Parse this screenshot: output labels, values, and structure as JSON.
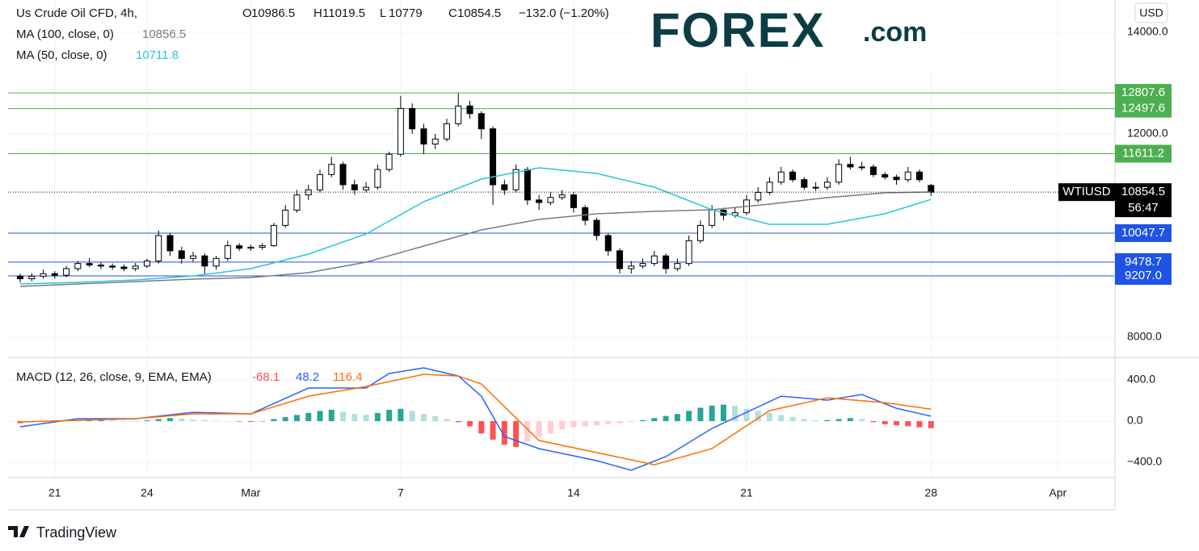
{
  "chart_data": {
    "type": "candlestick",
    "symbol_title": "Us Crude Oil CFD, 4h,",
    "ohlc_labels": [
      "O",
      "H",
      "L",
      "C"
    ],
    "change_text": "−132.0 (−1.20%)",
    "currency": "USD",
    "logo": "FOREX",
    "logo_suffix": ".com",
    "footer": "TradingView",
    "symbol": "WTIUSD",
    "countdown": "56:47",
    "categories": [
      null,
      null,
      null,
      "21",
      null,
      null,
      null,
      null,
      null,
      null,
      null,
      "24",
      null,
      null,
      null,
      null,
      null,
      null,
      null,
      null,
      "Mar",
      null,
      null,
      null,
      null,
      null,
      null,
      null,
      null,
      null,
      null,
      null,
      null,
      "7",
      null,
      null,
      null,
      null,
      null,
      null,
      null,
      null,
      null,
      null,
      null,
      null,
      null,
      null,
      "14",
      null,
      null,
      null,
      null,
      null,
      null,
      null,
      null,
      null,
      null,
      null,
      null,
      null,
      null,
      "21",
      null,
      null,
      null,
      null,
      null,
      null,
      null,
      null,
      null,
      null,
      null,
      null,
      null,
      null,
      null,
      "28",
      null,
      null,
      null,
      null,
      null,
      null,
      null,
      null,
      null,
      null,
      "Apr",
      null,
      null,
      null,
      null,
      null
    ],
    "ohlc": [
      [
        9200,
        9250,
        9080,
        9150
      ],
      [
        9150,
        9260,
        9100,
        9200
      ],
      [
        9200,
        9330,
        9150,
        9250
      ],
      [
        9250,
        9300,
        9150,
        9220
      ],
      [
        9220,
        9400,
        9180,
        9350
      ],
      [
        9350,
        9500,
        9300,
        9450
      ],
      [
        9450,
        9560,
        9380,
        9420
      ],
      [
        9420,
        9480,
        9340,
        9400
      ],
      [
        9400,
        9450,
        9330,
        9380
      ],
      [
        9380,
        9430,
        9300,
        9350
      ],
      [
        9350,
        9460,
        9300,
        9400
      ],
      [
        9400,
        9550,
        9360,
        9500
      ],
      [
        9500,
        10100,
        9450,
        10000
      ],
      [
        10000,
        10050,
        9600,
        9700
      ],
      [
        9700,
        9780,
        9450,
        9550
      ],
      [
        9550,
        9680,
        9480,
        9600
      ],
      [
        9600,
        9650,
        9250,
        9400
      ],
      [
        9400,
        9600,
        9330,
        9550
      ],
      [
        9550,
        9900,
        9500,
        9800
      ],
      [
        9800,
        9850,
        9700,
        9750
      ],
      [
        9750,
        9820,
        9700,
        9770
      ],
      [
        9770,
        9850,
        9720,
        9800
      ],
      [
        9800,
        10250,
        9780,
        10200
      ],
      [
        10200,
        10600,
        10150,
        10500
      ],
      [
        10500,
        10900,
        10450,
        10800
      ],
      [
        10800,
        11000,
        10700,
        10900
      ],
      [
        10900,
        11300,
        10850,
        11200
      ],
      [
        11200,
        11550,
        11150,
        11400
      ],
      [
        11400,
        11450,
        10900,
        11000
      ],
      [
        11000,
        11100,
        10800,
        10900
      ],
      [
        10900,
        11050,
        10850,
        10950
      ],
      [
        10950,
        11400,
        10900,
        11300
      ],
      [
        11300,
        11650,
        11250,
        11600
      ],
      [
        11600,
        12750,
        11550,
        12500
      ],
      [
        12500,
        12600,
        12000,
        12100
      ],
      [
        12100,
        12200,
        11600,
        11800
      ],
      [
        11800,
        12000,
        11700,
        11900
      ],
      [
        11900,
        12300,
        11850,
        12200
      ],
      [
        12200,
        12800,
        12150,
        12550
      ],
      [
        12550,
        12650,
        12300,
        12400
      ],
      [
        12400,
        12450,
        11900,
        12100
      ],
      [
        12100,
        12150,
        10600,
        11000
      ],
      [
        11000,
        11100,
        10800,
        10900
      ],
      [
        10900,
        11400,
        10850,
        11300
      ],
      [
        11300,
        11350,
        10600,
        10700
      ],
      [
        10700,
        10800,
        10500,
        10650
      ],
      [
        10650,
        10850,
        10600,
        10750
      ],
      [
        10750,
        10900,
        10700,
        10800
      ],
      [
        10800,
        10850,
        10450,
        10550
      ],
      [
        10550,
        10600,
        10200,
        10300
      ],
      [
        10300,
        10350,
        9900,
        10000
      ],
      [
        10000,
        10050,
        9600,
        9700
      ],
      [
        9700,
        9750,
        9250,
        9350
      ],
      [
        9350,
        9500,
        9250,
        9400
      ],
      [
        9400,
        9550,
        9350,
        9450
      ],
      [
        9450,
        9700,
        9400,
        9600
      ],
      [
        9600,
        9650,
        9250,
        9350
      ],
      [
        9350,
        9550,
        9300,
        9450
      ],
      [
        9450,
        10000,
        9400,
        9900
      ],
      [
        9900,
        10300,
        9850,
        10200
      ],
      [
        10200,
        10600,
        10150,
        10500
      ],
      [
        10500,
        10550,
        10300,
        10400
      ],
      [
        10400,
        10550,
        10350,
        10450
      ],
      [
        10450,
        10800,
        10400,
        10700
      ],
      [
        10700,
        10950,
        10650,
        10850
      ],
      [
        10850,
        11150,
        10800,
        11050
      ],
      [
        11050,
        11350,
        11000,
        11250
      ],
      [
        11250,
        11300,
        11050,
        11100
      ],
      [
        11100,
        11150,
        10900,
        10950
      ],
      [
        10950,
        11050,
        10880,
        10950
      ],
      [
        10950,
        11150,
        10900,
        11050
      ],
      [
        11050,
        11500,
        11000,
        11400
      ],
      [
        11400,
        11550,
        11300,
        11350
      ],
      [
        11350,
        11450,
        11280,
        11350
      ],
      [
        11350,
        11400,
        11150,
        11200
      ],
      [
        11200,
        11250,
        11100,
        11150
      ],
      [
        11150,
        11200,
        11000,
        11100
      ],
      [
        11100,
        11350,
        11050,
        11250
      ],
      [
        11250,
        11300,
        11050,
        11100
      ],
      [
        10986.5,
        11019.5,
        10779,
        10854.5
      ],
      null,
      null,
      null,
      null,
      null,
      null,
      null,
      null,
      null,
      null,
      null,
      null,
      null,
      null,
      null,
      null
    ],
    "up_color": "#ffffff",
    "down_color": "#000000",
    "ylim": [
      7603,
      14635
    ],
    "yticks": [
      {
        "value": 8000,
        "label": "8000.0"
      },
      {
        "value": 12000,
        "label": "12000.0"
      },
      {
        "value": 14000,
        "label": "14000.0"
      }
    ],
    "grid": true,
    "moving_averages": [
      {
        "name": "MA (100, close, 0)",
        "color": "#787b86",
        "x": [
          0,
          5,
          10,
          15,
          20,
          25,
          30,
          35,
          40,
          45,
          50,
          55,
          60,
          65,
          70,
          75,
          79
        ],
        "values": [
          9000,
          9048,
          9095,
          9143,
          9175,
          9270,
          9476,
          9794,
          10111,
          10317,
          10429,
          10476,
          10508,
          10619,
          10746,
          10841,
          10856.5
        ]
      },
      {
        "name": "MA (50, close, 0)",
        "color": "#26c6da",
        "x": [
          0,
          5,
          10,
          15,
          20,
          25,
          30,
          35,
          40,
          45,
          50,
          55,
          60,
          65,
          70,
          75,
          79
        ],
        "values": [
          9048,
          9080,
          9127,
          9206,
          9349,
          9635,
          10032,
          10667,
          11111,
          11333,
          11222,
          10952,
          10508,
          10222,
          10222,
          10429,
          10711.8
        ]
      }
    ],
    "levels": [
      {
        "value": 12807.6,
        "color": "#4caf50"
      },
      {
        "value": 12497.6,
        "color": "#4caf50"
      },
      {
        "value": 11611.2,
        "color": "#4caf50"
      },
      {
        "value": 10047.7,
        "color": "#1e53e5"
      },
      {
        "value": 9478.7,
        "color": "#1e53e5"
      },
      {
        "value": 9207,
        "label": "9207.0",
        "color": "#1e53e5"
      }
    ],
    "macd": {
      "name": "MACD (12, 26, close, 9, EMA, EMA)",
      "ylim": [
        -549,
        620
      ],
      "yticks": [
        {
          "value": 400,
          "label": "400.0"
        },
        {
          "value": 0,
          "label": "0.0"
        },
        {
          "value": -400,
          "label": "−400.0"
        }
      ],
      "histogram": {
        "values": [
          -20,
          -15,
          -10,
          0,
          5,
          10,
          12,
          15,
          10,
          5,
          0,
          8,
          20,
          30,
          25,
          15,
          10,
          5,
          0,
          -5,
          -8,
          0,
          20,
          40,
          60,
          80,
          100,
          110,
          90,
          70,
          60,
          80,
          110,
          120,
          100,
          70,
          50,
          20,
          -10,
          -50,
          -120,
          -180,
          -230,
          -250,
          -200,
          -150,
          -120,
          -80,
          -60,
          -50,
          -40,
          -30,
          -20,
          -10,
          10,
          30,
          50,
          70,
          100,
          130,
          150,
          160,
          150,
          120,
          100,
          80,
          60,
          40,
          20,
          10,
          10,
          20,
          30,
          20,
          -10,
          -30,
          -40,
          -50,
          -60,
          -68.1,
          null,
          null,
          null,
          null,
          null,
          null,
          null,
          null,
          null,
          null,
          null,
          null,
          null,
          null,
          null,
          null
        ],
        "colors": [
          "#26a69a",
          "#b2dfdb",
          "#ffcdd2",
          "#ff5252"
        ],
        "legend_color": "#ff5252"
      },
      "series": [
        {
          "color": "#2962ff",
          "x": [
            0,
            5,
            10,
            15,
            20,
            25,
            30,
            32,
            35,
            38,
            40,
            42,
            45,
            50,
            53,
            56,
            60,
            63,
            66,
            70,
            73,
            76,
            79
          ],
          "values": [
            -55,
            24,
            24,
            86,
            71,
            322,
            322,
            463,
            518,
            439,
            243,
            -149,
            -267,
            -384,
            -478,
            -345,
            -71,
            86,
            243,
            204,
            259,
            125,
            48.2
          ]
        },
        {
          "color": "#ff6d00",
          "x": [
            0,
            5,
            10,
            15,
            20,
            25,
            30,
            35,
            38,
            40,
            45,
            50,
            55,
            60,
            65,
            70,
            75,
            79
          ],
          "values": [
            -8,
            8,
            24,
            71,
            71,
            243,
            337,
            455,
            439,
            361,
            -188,
            -306,
            -424,
            -267,
            102,
            227,
            180,
            116.4
          ]
        }
      ]
    }
  }
}
